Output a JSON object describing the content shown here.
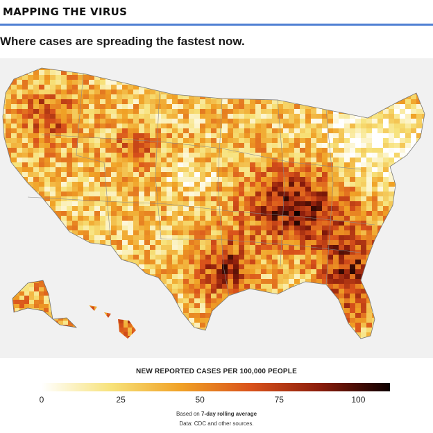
{
  "header": {
    "kicker": "MAPPING THE VIRUS",
    "accent_color": "#4f7fd3"
  },
  "subtitle": "Where cases are spreading the fastest now.",
  "map": {
    "subject": "United States counties, new reported COVID-19 cases per 100,000 people",
    "background": "#f1f1f1"
  },
  "legend": {
    "title": "NEW REPORTED CASES PER 100,000 PEOPLE",
    "scale_min": 0,
    "scale_max": 110,
    "ticks": [
      {
        "label": "0",
        "value": 0
      },
      {
        "label": "25",
        "value": 25
      },
      {
        "label": "50",
        "value": 50
      },
      {
        "label": "75",
        "value": 75
      },
      {
        "label": "100",
        "value": 100
      }
    ],
    "colors": [
      "#ffffff",
      "#f7e27a",
      "#f0a126",
      "#d9521b",
      "#8a1c0b",
      "#0d0000"
    ],
    "note_prefix": "Based on",
    "note_bold": "7-day rolling average",
    "source": "Data: CDC and other sources."
  }
}
